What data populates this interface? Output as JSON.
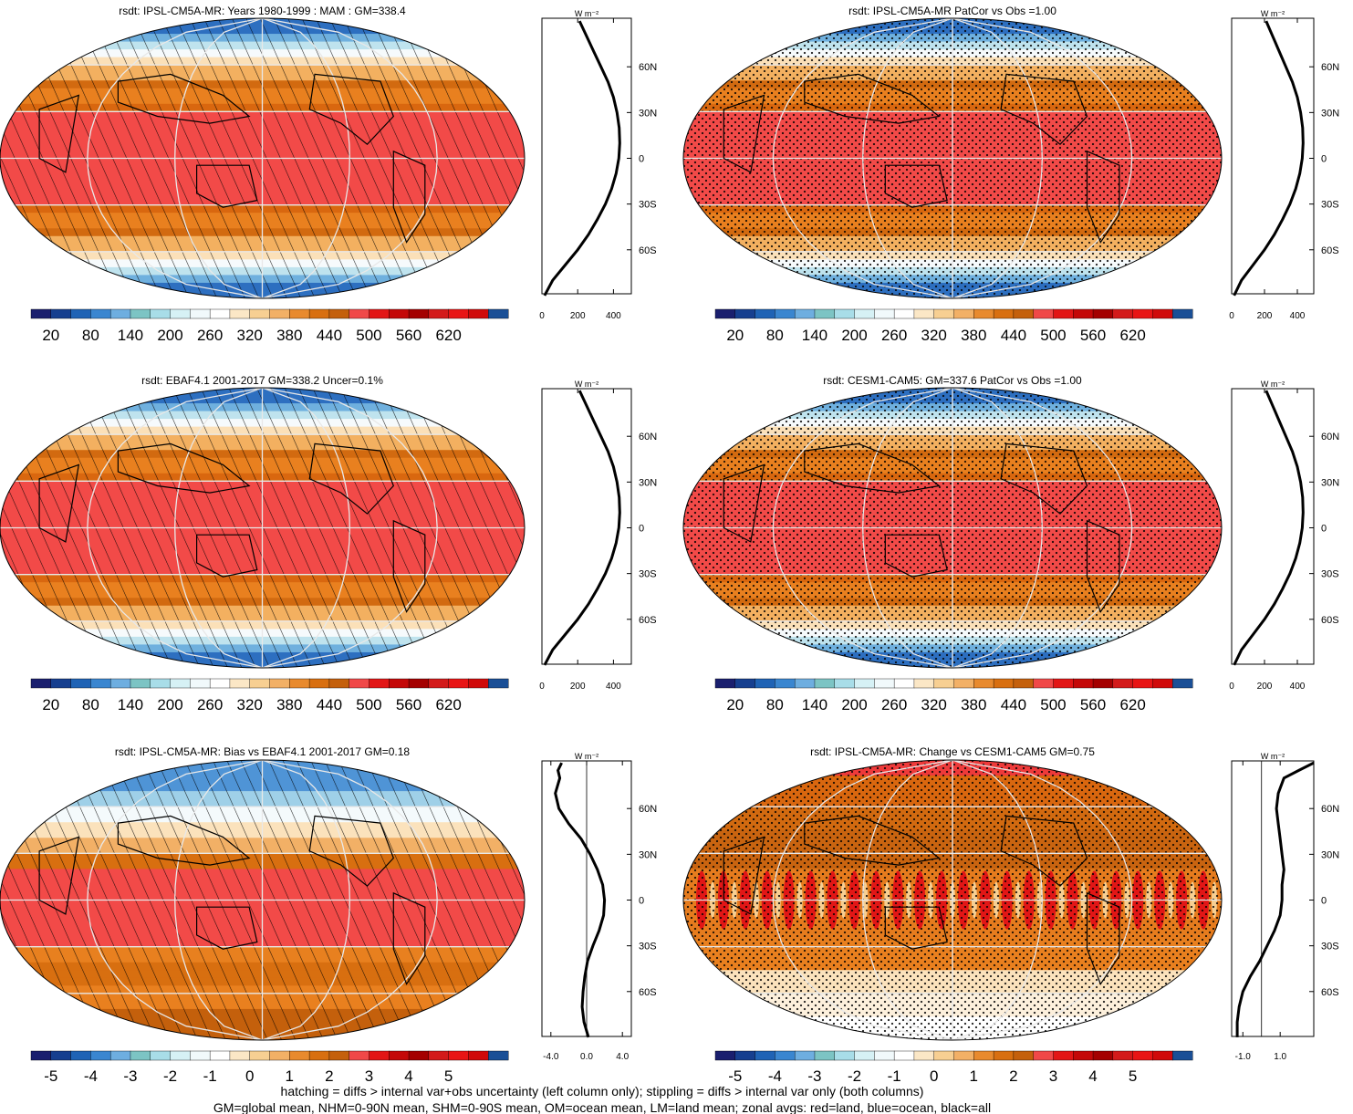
{
  "panels": [
    {
      "title": "rsdt: IPSL-CM5A-MR: Years 1980-1999 : MAM : GM=338.4",
      "pattern": "hatch",
      "map_kind": "abs",
      "colorbar_labels": [
        "20",
        "80",
        "140",
        "200",
        "260",
        "320",
        "380",
        "440",
        "500",
        "560",
        "620"
      ],
      "profile_unit": "W m⁻²",
      "profile_xticks": [
        "0",
        "200",
        "400"
      ],
      "profile_xlim": [
        0,
        500
      ],
      "profile_ylabels": [
        "60N",
        "30N",
        "0",
        "30S",
        "60S"
      ]
    },
    {
      "title": "rsdt: IPSL-CM5A-MR PatCor vs Obs =1.00",
      "pattern": "stipple",
      "map_kind": "abs",
      "colorbar_labels": [
        "20",
        "80",
        "140",
        "200",
        "260",
        "320",
        "380",
        "440",
        "500",
        "560",
        "620"
      ],
      "profile_unit": "W m⁻²",
      "profile_xticks": [
        "0",
        "200",
        "400"
      ],
      "profile_xlim": [
        0,
        500
      ],
      "profile_ylabels": [
        "60N",
        "30N",
        "0",
        "30S",
        "60S"
      ]
    },
    {
      "title": "rsdt: EBAF4.1 2001-2017 GM=338.2 Uncer=0.1%",
      "pattern": "hatch",
      "map_kind": "abs",
      "colorbar_labels": [
        "20",
        "80",
        "140",
        "200",
        "260",
        "320",
        "380",
        "440",
        "500",
        "560",
        "620"
      ],
      "profile_unit": "W m⁻²",
      "profile_xticks": [
        "0",
        "200",
        "400"
      ],
      "profile_xlim": [
        0,
        500
      ],
      "profile_ylabels": [
        "60N",
        "30N",
        "0",
        "30S",
        "60S"
      ]
    },
    {
      "title": "rsdt: CESM1-CAM5: GM=337.6 PatCor vs Obs =1.00",
      "pattern": "stipple",
      "map_kind": "abs",
      "colorbar_labels": [
        "20",
        "80",
        "140",
        "200",
        "260",
        "320",
        "380",
        "440",
        "500",
        "560",
        "620"
      ],
      "profile_unit": "W m⁻²",
      "profile_xticks": [
        "0",
        "200",
        "400"
      ],
      "profile_xlim": [
        0,
        500
      ],
      "profile_ylabels": [
        "60N",
        "30N",
        "0",
        "30S",
        "60S"
      ]
    },
    {
      "title": "rsdt: IPSL-CM5A-MR: Bias vs EBAF4.1 2001-2017 GM=0.18",
      "pattern": "hatch",
      "map_kind": "bias",
      "colorbar_labels": [
        "-5",
        "-4",
        "-3",
        "-2",
        "-1",
        "0",
        "1",
        "2",
        "3",
        "4",
        "5"
      ],
      "profile_unit": "W m⁻²",
      "profile_xticks": [
        "-4.0",
        "0.0",
        "4.0"
      ],
      "profile_xlim": [
        -5,
        5
      ],
      "profile_ylabels": [
        "60N",
        "30N",
        "0",
        "30S",
        "60S"
      ]
    },
    {
      "title": "rsdt: IPSL-CM5A-MR: Change vs CESM1-CAM5 GM=0.75",
      "pattern": "stipple",
      "map_kind": "change",
      "colorbar_labels": [
        "-5",
        "-4",
        "-3",
        "-2",
        "-1",
        "0",
        "1",
        "2",
        "3",
        "4",
        "5"
      ],
      "profile_unit": "W m⁻²",
      "profile_xticks": [
        "-1.0",
        "1.0"
      ],
      "profile_xlim": [
        -1.6,
        2.8
      ],
      "profile_ylabels": [
        "60N",
        "30N",
        "0",
        "30S",
        "60S"
      ]
    }
  ],
  "colorbar_colors": [
    "#1a1f6e",
    "#163f8f",
    "#1f63b5",
    "#3a86d0",
    "#6eaee0",
    "#7cc4c4",
    "#a8dde8",
    "#d6f1f5",
    "#f1f9fb",
    "#ffffff",
    "#fbe7c6",
    "#f7cf92",
    "#f2b066",
    "#e88a2e",
    "#d86f10",
    "#c4600c",
    "#f04848",
    "#e21616",
    "#c40808",
    "#a40000",
    "#d31a1a",
    "#e81515",
    "#d00a0a",
    "#1a4f96"
  ],
  "footer_lines": [
    "hatching = diffs > internal var+obs uncertainty (left column only); stippling = diffs > internal var only (both columns)",
    "GM=global mean, NHM=0-90N mean, SHM=0-90S mean, OM=ocean mean, LM=land mean; zonal avgs: red=land, blue=ocean, black=all"
  ],
  "chart_data": [
    {
      "type": "heatmap",
      "title": "rsdt: IPSL-CM5A-MR: Years 1980-1999 : MAM : GM=338.4",
      "colorbar": [
        20,
        80,
        140,
        200,
        260,
        320,
        380,
        440,
        500,
        560,
        620
      ],
      "zonal_mean": {
        "lat": [
          90,
          80,
          70,
          60,
          50,
          40,
          30,
          20,
          10,
          0,
          -10,
          -20,
          -30,
          -40,
          -50,
          -60,
          -70,
          -80,
          -90
        ],
        "values": [
          210,
          250,
          290,
          330,
          370,
          400,
          420,
          432,
          435,
          430,
          415,
          390,
          355,
          310,
          260,
          200,
          130,
          60,
          15
        ]
      },
      "profile_xlim": [
        0,
        500
      ]
    },
    {
      "type": "heatmap",
      "title": "rsdt: IPSL-CM5A-MR PatCor vs Obs =1.00",
      "colorbar": [
        20,
        80,
        140,
        200,
        260,
        320,
        380,
        440,
        500,
        560,
        620
      ],
      "zonal_mean": {
        "lat": [
          90,
          80,
          70,
          60,
          50,
          40,
          30,
          20,
          10,
          0,
          -10,
          -20,
          -30,
          -40,
          -50,
          -60,
          -70,
          -80,
          -90
        ],
        "values": [
          210,
          250,
          290,
          330,
          370,
          400,
          420,
          432,
          435,
          430,
          415,
          390,
          355,
          310,
          260,
          200,
          130,
          60,
          15
        ]
      },
      "profile_xlim": [
        0,
        500
      ]
    },
    {
      "type": "heatmap",
      "title": "rsdt: EBAF4.1 2001-2017 GM=338.2 Uncer=0.1%",
      "colorbar": [
        20,
        80,
        140,
        200,
        260,
        320,
        380,
        440,
        500,
        560,
        620
      ],
      "zonal_mean": {
        "lat": [
          90,
          80,
          70,
          60,
          50,
          40,
          30,
          20,
          10,
          0,
          -10,
          -20,
          -30,
          -40,
          -50,
          -60,
          -70,
          -80,
          -90
        ],
        "values": [
          210,
          250,
          290,
          330,
          370,
          400,
          420,
          432,
          435,
          430,
          415,
          390,
          355,
          310,
          260,
          200,
          130,
          60,
          15
        ]
      },
      "profile_xlim": [
        0,
        500
      ]
    },
    {
      "type": "heatmap",
      "title": "rsdt: CESM1-CAM5: GM=337.6 PatCor vs Obs =1.00",
      "colorbar": [
        20,
        80,
        140,
        200,
        260,
        320,
        380,
        440,
        500,
        560,
        620
      ],
      "zonal_mean": {
        "lat": [
          90,
          80,
          70,
          60,
          50,
          40,
          30,
          20,
          10,
          0,
          -10,
          -20,
          -30,
          -40,
          -50,
          -60,
          -70,
          -80,
          -90
        ],
        "values": [
          210,
          250,
          290,
          330,
          370,
          400,
          420,
          432,
          435,
          430,
          415,
          390,
          355,
          310,
          260,
          200,
          130,
          60,
          15
        ]
      },
      "profile_xlim": [
        0,
        500
      ]
    },
    {
      "type": "heatmap",
      "title": "rsdt: IPSL-CM5A-MR: Bias vs EBAF4.1 2001-2017 GM=0.18",
      "colorbar": [
        -5,
        -4,
        -3,
        -2,
        -1,
        0,
        1,
        2,
        3,
        4,
        5
      ],
      "zonal_mean": {
        "lat": [
          90,
          85,
          80,
          70,
          60,
          50,
          40,
          30,
          20,
          10,
          0,
          -10,
          -20,
          -30,
          -40,
          -50,
          -60,
          -70,
          -80,
          -90
        ],
        "values": [
          -2.8,
          -3.2,
          -3.0,
          -3.5,
          -3.1,
          -2.0,
          -0.6,
          0.4,
          1.2,
          1.8,
          2.0,
          1.9,
          1.4,
          0.7,
          0.1,
          -0.2,
          -0.4,
          -0.5,
          -0.3,
          0.2
        ]
      },
      "profile_xlim": [
        -5,
        5
      ]
    },
    {
      "type": "heatmap",
      "title": "rsdt: IPSL-CM5A-MR: Change vs CESM1-CAM5 GM=0.75",
      "colorbar": [
        -5,
        -4,
        -3,
        -2,
        -1,
        0,
        1,
        2,
        3,
        4,
        5
      ],
      "zonal_mean": {
        "lat": [
          90,
          85,
          80,
          70,
          60,
          50,
          40,
          30,
          20,
          10,
          0,
          -10,
          -20,
          -30,
          -40,
          -50,
          -60,
          -70,
          -80,
          -90
        ],
        "values": [
          2.8,
          2.0,
          1.2,
          0.9,
          0.8,
          0.9,
          1.0,
          1.1,
          1.2,
          1.1,
          1.1,
          1.0,
          0.7,
          0.3,
          -0.1,
          -0.6,
          -1.0,
          -1.2,
          -1.3,
          -1.3
        ]
      },
      "profile_xlim": [
        -1.6,
        2.8
      ]
    }
  ]
}
